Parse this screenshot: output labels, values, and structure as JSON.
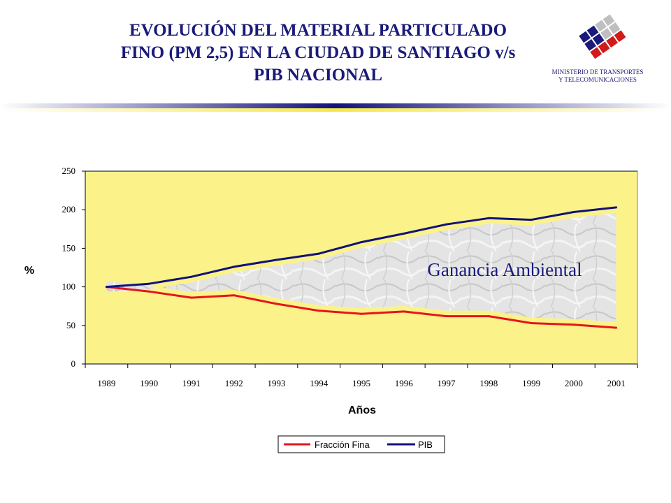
{
  "header": {
    "title_lines": [
      "EVOLUCIÓN DEL MATERIAL PARTICULADO",
      "FINO (PM 2,5) EN LA CIUDAD DE SANTIAGO v/s",
      "PIB NACIONAL"
    ],
    "ministry_lines": [
      "MINISTERIO DE TRANSPORTES",
      "Y TELECOMUNICACIONES"
    ],
    "logo_icon": "ministry-logo-icon"
  },
  "colors": {
    "title": "#1a1a7a",
    "plot_background": "#fbf38a",
    "fine_fraction": "#e8141c",
    "pib": "#12127a",
    "gain_area": "#dcdcdc"
  },
  "chart_data": {
    "type": "line",
    "x": [
      "1989",
      "1990",
      "1991",
      "1992",
      "1993",
      "1994",
      "1995",
      "1996",
      "1997",
      "1998",
      "1999",
      "2000",
      "2001"
    ],
    "series": [
      {
        "name": "Fracción Fina",
        "color": "#e8141c",
        "values": [
          100,
          94,
          86,
          89,
          78,
          69,
          65,
          68,
          62,
          62,
          53,
          51,
          47
        ]
      },
      {
        "name": "PIB",
        "color": "#12127a",
        "values": [
          100,
          104,
          113,
          126,
          135,
          143,
          158,
          169,
          181,
          189,
          187,
          197,
          203
        ]
      }
    ],
    "ylim": [
      0,
      250
    ],
    "yticks": [
      0,
      50,
      100,
      150,
      200,
      250
    ],
    "ylabel": "%",
    "xlabel": "Años",
    "annotation": "Ganancia Ambiental",
    "legend_position": "bottom",
    "grid": false
  }
}
